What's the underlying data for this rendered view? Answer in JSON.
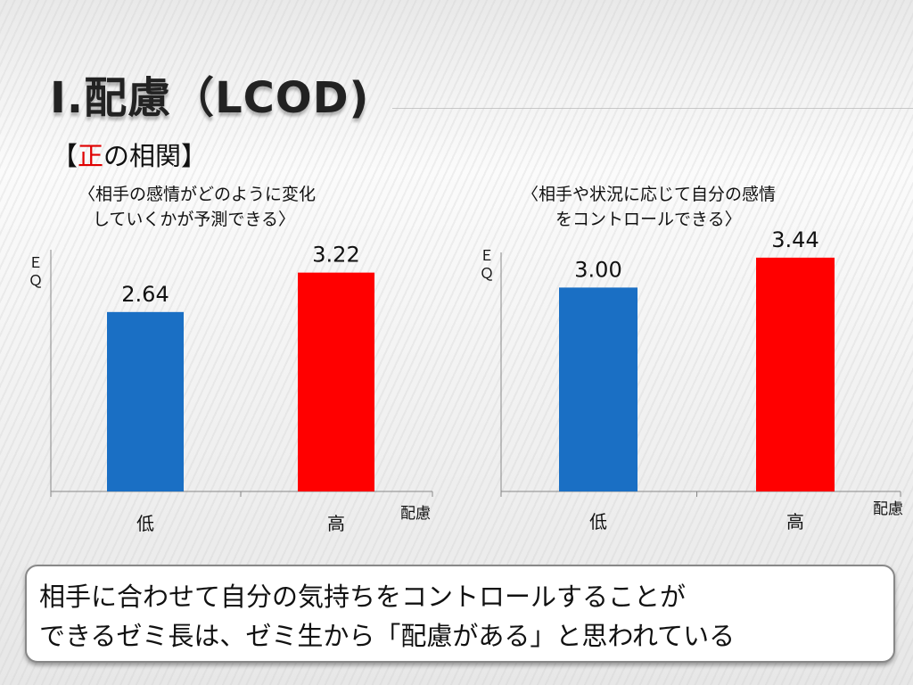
{
  "slide": {
    "title": "Ⅰ.配慮（LCOD)",
    "section_open": "【",
    "section_accent": "正",
    "section_rest": "の相関】"
  },
  "captions": {
    "left": [
      "〈相手の感情がどのように変化",
      "していくかが予測できる〉"
    ],
    "right": [
      "〈相手や状況に応じて自分の感情",
      "をコントロールできる〉"
    ]
  },
  "chart_data": [
    {
      "type": "bar",
      "categories": [
        "低",
        "高"
      ],
      "values": [
        2.64,
        3.22
      ],
      "value_labels": [
        "2.64",
        "3.22"
      ],
      "colors": [
        "#1a6fc4",
        "#ff0000"
      ],
      "ylabel": "ＥＱ",
      "xlabel": "配慮",
      "ylim": [
        0,
        3.5
      ],
      "grid": false
    },
    {
      "type": "bar",
      "categories": [
        "低",
        "高"
      ],
      "values": [
        3.0,
        3.44
      ],
      "value_labels": [
        "3.00",
        "3.44"
      ],
      "colors": [
        "#1a6fc4",
        "#ff0000"
      ],
      "ylabel": "ＥＱ",
      "xlabel": "配慮",
      "ylim": [
        0,
        3.5
      ],
      "grid": false
    }
  ],
  "callout": {
    "line1": "相手に合わせて自分の気持ちをコントロールすることが",
    "line2": "できるゼミ長は、ゼミ生から「配慮がある」と思われている"
  }
}
